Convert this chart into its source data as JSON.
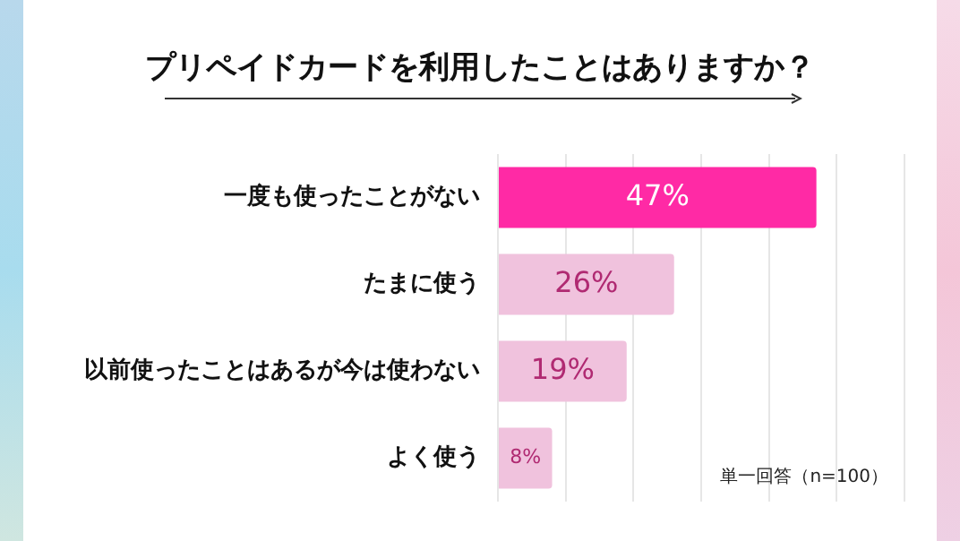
{
  "chart_data": {
    "type": "bar",
    "orientation": "horizontal",
    "title": "プリペイドカードを利用したことはありますか？",
    "categories": [
      "一度も使ったことがない",
      "たまに使う",
      "以前使ったことはあるが今は使わない",
      "よく使う"
    ],
    "values": [
      47,
      26,
      19,
      8
    ],
    "colors": [
      "#ff2aa5",
      "#f0c2dd",
      "#f0c2dd",
      "#f0c2dd"
    ],
    "value_labels": [
      "47%",
      "26%",
      "19%",
      "8%"
    ],
    "xlim": [
      0,
      60
    ],
    "xticks": [
      {
        "value": 0,
        "label": null
      },
      {
        "value": 10,
        "label": null
      },
      {
        "value": 20,
        "label": null
      },
      {
        "value": 30,
        "label": null
      },
      {
        "value": 40,
        "label": null
      },
      {
        "value": 50,
        "label": null
      },
      {
        "value": 60,
        "label": null
      }
    ],
    "tick_labels": "y",
    "grid": "x",
    "legend": false,
    "annotations": [
      "単一回答（n=100）"
    ]
  }
}
